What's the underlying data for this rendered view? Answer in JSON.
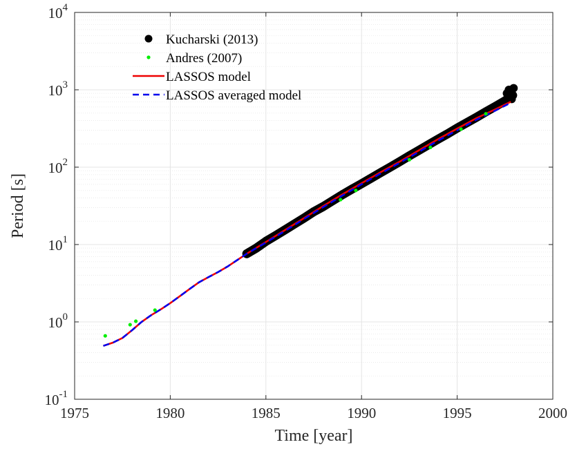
{
  "chart_data": {
    "type": "scatter",
    "title": "",
    "xlabel": "Time [year]",
    "ylabel": "Period [s]",
    "xlim": [
      1975,
      2000
    ],
    "ylim": [
      0.1,
      10000
    ],
    "yscale": "log",
    "grid": true,
    "legend_position": "top-left",
    "x_ticks": [
      "1975",
      "1980",
      "1985",
      "1990",
      "1995",
      "2000"
    ],
    "y_ticks": [
      {
        "base": "10",
        "exp": "-1",
        "value": 0.1
      },
      {
        "base": "10",
        "exp": "0",
        "value": 1
      },
      {
        "base": "10",
        "exp": "1",
        "value": 10
      },
      {
        "base": "10",
        "exp": "2",
        "value": 100
      },
      {
        "base": "10",
        "exp": "3",
        "value": 1000
      },
      {
        "base": "10",
        "exp": "4",
        "value": 10000
      }
    ],
    "series": [
      {
        "name": "Kucharski (2013)",
        "kind": "scatter",
        "color": "#000000",
        "points": [
          [
            1984.0,
            7.6
          ],
          [
            1984.5,
            9.0
          ],
          [
            1985.0,
            11.0
          ],
          [
            1985.5,
            13.0
          ],
          [
            1986.0,
            15.5
          ],
          [
            1986.5,
            18.5
          ],
          [
            1987.0,
            22.0
          ],
          [
            1987.5,
            26.5
          ],
          [
            1988.0,
            31.0
          ],
          [
            1988.5,
            37.0
          ],
          [
            1989.0,
            44.0
          ],
          [
            1989.5,
            52.0
          ],
          [
            1990.0,
            61.0
          ],
          [
            1990.5,
            72.0
          ],
          [
            1991.0,
            85.0
          ],
          [
            1991.5,
            100.0
          ],
          [
            1992.0,
            118.0
          ],
          [
            1992.5,
            140.0
          ],
          [
            1993.0,
            165.0
          ],
          [
            1993.5,
            195.0
          ],
          [
            1994.0,
            230.0
          ],
          [
            1994.5,
            270.0
          ],
          [
            1995.0,
            320.0
          ],
          [
            1995.5,
            375.0
          ],
          [
            1996.0,
            440.0
          ],
          [
            1996.5,
            520.0
          ],
          [
            1997.0,
            610.0
          ],
          [
            1997.5,
            720.0
          ],
          [
            1997.9,
            850.0
          ]
        ]
      },
      {
        "name": "Andres (2007)",
        "kind": "scatter",
        "color": "#00ee00",
        "points": [
          [
            1976.6,
            0.66
          ],
          [
            1977.9,
            0.92
          ],
          [
            1978.2,
            1.02
          ],
          [
            1979.2,
            1.42
          ],
          [
            1988.9,
            38.0
          ],
          [
            1989.7,
            50.0
          ],
          [
            1992.5,
            125.0
          ],
          [
            1993.6,
            180.0
          ],
          [
            1995.2,
            310.0
          ],
          [
            1996.5,
            490.0
          ]
        ]
      },
      {
        "name": "LASSOS model",
        "kind": "line",
        "color": "#ee0000",
        "points": [
          [
            1976.5,
            0.49
          ],
          [
            1977.0,
            0.54
          ],
          [
            1977.5,
            0.62
          ],
          [
            1978.0,
            0.78
          ],
          [
            1978.5,
            1.0
          ],
          [
            1979.0,
            1.22
          ],
          [
            1979.5,
            1.45
          ],
          [
            1980.0,
            1.75
          ],
          [
            1980.5,
            2.15
          ],
          [
            1981.0,
            2.65
          ],
          [
            1981.5,
            3.25
          ],
          [
            1982.0,
            3.8
          ],
          [
            1982.5,
            4.4
          ],
          [
            1983.0,
            5.2
          ],
          [
            1983.5,
            6.3
          ],
          [
            1984.0,
            7.6
          ],
          [
            1985.0,
            10.8
          ],
          [
            1986.0,
            15.4
          ],
          [
            1987.0,
            22.0
          ],
          [
            1988.0,
            31.5
          ],
          [
            1989.0,
            44.5
          ],
          [
            1990.0,
            62.0
          ],
          [
            1991.0,
            86.0
          ],
          [
            1992.0,
            118.0
          ],
          [
            1993.0,
            165.0
          ],
          [
            1994.0,
            230.0
          ],
          [
            1995.0,
            315.0
          ],
          [
            1996.0,
            430.0
          ],
          [
            1997.0,
            560.0
          ],
          [
            1997.8,
            700.0
          ]
        ]
      },
      {
        "name": "LASSOS averaged model",
        "kind": "dashed-line",
        "color": "#0000ee",
        "points": [
          [
            1976.5,
            0.49
          ],
          [
            1977.0,
            0.54
          ],
          [
            1977.5,
            0.62
          ],
          [
            1978.0,
            0.78
          ],
          [
            1978.5,
            1.0
          ],
          [
            1979.0,
            1.22
          ],
          [
            1979.5,
            1.45
          ],
          [
            1980.0,
            1.75
          ],
          [
            1980.5,
            2.15
          ],
          [
            1981.0,
            2.65
          ],
          [
            1981.5,
            3.25
          ],
          [
            1982.0,
            3.8
          ],
          [
            1982.5,
            4.4
          ],
          [
            1983.0,
            5.2
          ],
          [
            1983.5,
            6.3
          ],
          [
            1984.0,
            7.6
          ],
          [
            1985.0,
            10.6
          ],
          [
            1986.0,
            15.0
          ],
          [
            1987.0,
            21.5
          ],
          [
            1988.0,
            30.5
          ],
          [
            1989.0,
            43.0
          ],
          [
            1990.0,
            60.0
          ],
          [
            1991.0,
            83.0
          ],
          [
            1992.0,
            114.0
          ],
          [
            1993.0,
            158.0
          ],
          [
            1994.0,
            220.0
          ],
          [
            1995.0,
            300.0
          ],
          [
            1996.0,
            410.0
          ],
          [
            1997.0,
            540.0
          ],
          [
            1997.8,
            680.0
          ]
        ]
      }
    ]
  }
}
